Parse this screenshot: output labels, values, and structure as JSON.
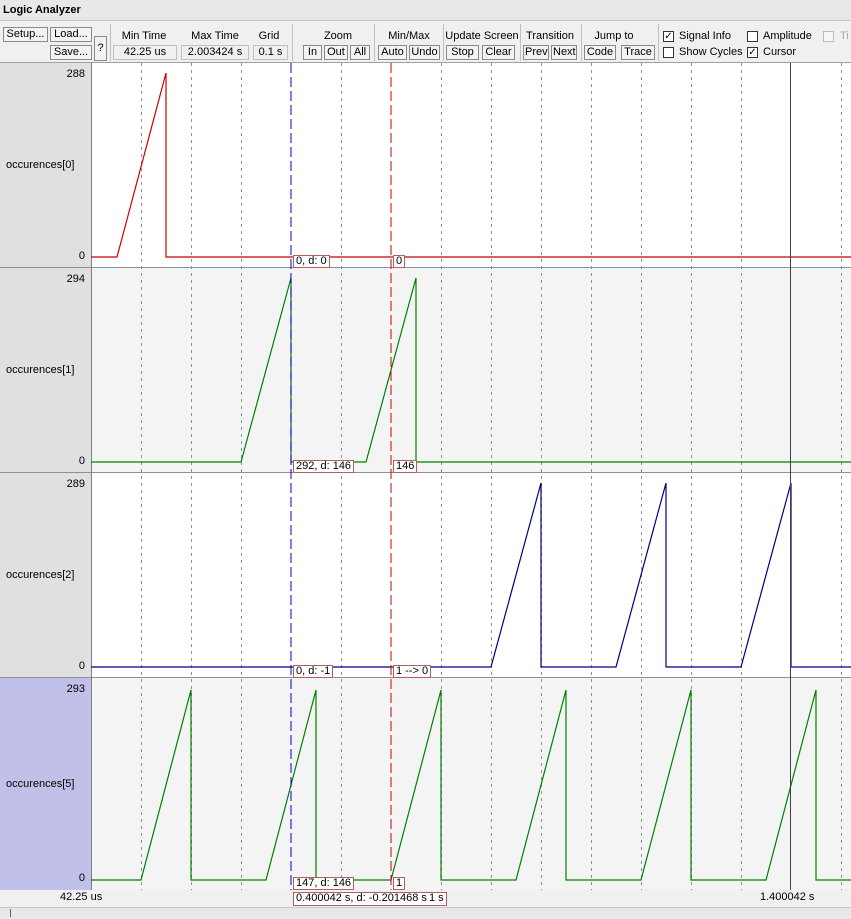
{
  "window": {
    "title": "Logic Analyzer"
  },
  "toolbar": {
    "setup_label": "Setup...",
    "load_label": "Load...",
    "save_label": "Save...",
    "help_label": "?",
    "min_time": {
      "label": "Min Time",
      "value": "42.25 us"
    },
    "max_time": {
      "label": "Max Time",
      "value": "2.003424 s"
    },
    "grid": {
      "label": "Grid",
      "value": "0.1 s"
    },
    "zoom": {
      "label": "Zoom",
      "in": "In",
      "out": "Out",
      "all": "All"
    },
    "minmax": {
      "label": "Min/Max",
      "auto": "Auto",
      "undo": "Undo"
    },
    "update": {
      "label": "Update Screen",
      "stop": "Stop",
      "clear": "Clear"
    },
    "transition": {
      "label": "Transition",
      "prev": "Prev",
      "next": "Next"
    },
    "jump": {
      "label": "Jump to",
      "code": "Code",
      "trace": "Trace"
    },
    "options": {
      "signal_info": {
        "label": "Signal Info",
        "checked": true
      },
      "amplitude": {
        "label": "Amplitude",
        "checked": false
      },
      "timestamps": {
        "label": "Ti",
        "checked": false
      },
      "show_cycles": {
        "label": "Show Cycles",
        "checked": false
      },
      "cursor": {
        "label": "Cursor",
        "checked": true
      }
    }
  },
  "colors": {
    "signal0": "#cc0000",
    "signal1": "#008000",
    "signal2": "#000080",
    "signal5": "#008000",
    "cursor_blue": "#0000cc",
    "cursor_red": "#cc0000",
    "selected_label_bg": "#c0c0e8"
  },
  "signals": [
    {
      "name": "occurences[0]",
      "max": "288",
      "min": "0",
      "cursor_info": "0,  d: 0",
      "marker_info": "0"
    },
    {
      "name": "occurences[1]",
      "max": "294",
      "min": "0",
      "cursor_info": "292,  d: 146",
      "marker_info": "146"
    },
    {
      "name": "occurences[2]",
      "max": "289",
      "min": "0",
      "cursor_info": "0,  d: -1",
      "marker_info": "1 --> 0"
    },
    {
      "name": "occurences[5]",
      "max": "293",
      "min": "0",
      "cursor_info": "147,  d: 146",
      "marker_info": "1"
    }
  ],
  "time_axis": {
    "start": "42.25 us",
    "cursor_info": "0.400042 s,  d: -0.201468 s",
    "marker_info": "1 s",
    "end": "1.400042 s"
  }
}
